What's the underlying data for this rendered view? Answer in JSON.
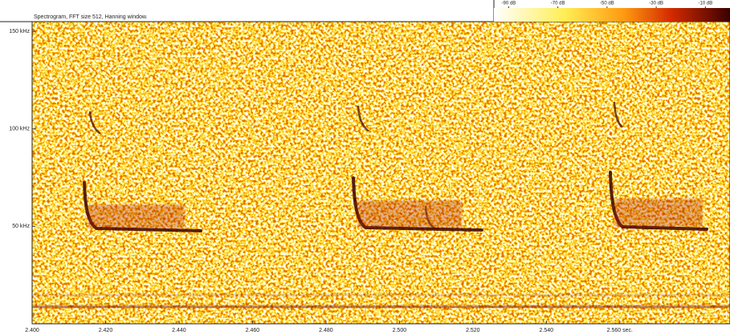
{
  "chart_data": {
    "type": "spectrogram",
    "title": "Spectrogram, FFT size 512, Hanning window.",
    "xlim": [
      2.4,
      2.59
    ],
    "xticks": [
      {
        "value": 2.4,
        "label": "2.400"
      },
      {
        "value": 2.42,
        "label": "2.420"
      },
      {
        "value": 2.44,
        "label": "2.440"
      },
      {
        "value": 2.46,
        "label": "2.460"
      },
      {
        "value": 2.48,
        "label": "2.480"
      },
      {
        "value": 2.5,
        "label": "2.500"
      },
      {
        "value": 2.52,
        "label": "2.520"
      },
      {
        "value": 2.54,
        "label": "2.540"
      },
      {
        "value": 2.56,
        "label": "2.560 sec."
      }
    ],
    "ylim": [
      0,
      155
    ],
    "yticks": [
      {
        "value": 50,
        "label": "50 kHz"
      },
      {
        "value": 100,
        "label": "100 kHz"
      },
      {
        "value": 150,
        "label": "150 kHz"
      }
    ],
    "colorbar": {
      "lim": [
        -96,
        0
      ],
      "ticks": [
        {
          "value": -90,
          "label": "-90 dB"
        },
        {
          "value": -70,
          "label": "-70 dB"
        },
        {
          "value": -50,
          "label": "-50 dB"
        },
        {
          "value": -30,
          "label": "-30 dB"
        },
        {
          "value": -10,
          "label": "-10 dB"
        }
      ]
    }
  }
}
